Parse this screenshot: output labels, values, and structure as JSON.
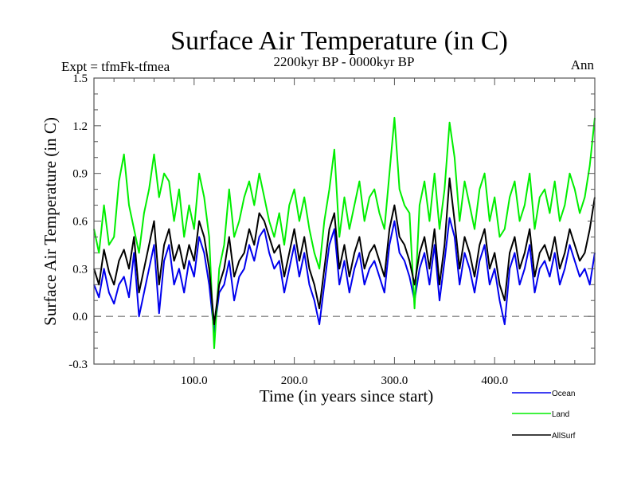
{
  "chart_data": {
    "type": "line",
    "title": "Surface Air Temperature (in C)",
    "subtitle": "2200kyr BP - 0000kyr BP",
    "left_annotation": "Expt = tfmFk-tfmea",
    "right_annotation": "Ann",
    "xlabel": "Time (in years since start)",
    "ylabel": "Surface Air Temperature (in C)",
    "xlim": [
      0,
      500
    ],
    "ylim": [
      -0.3,
      1.5
    ],
    "x_ticks": [
      100,
      200,
      300,
      400
    ],
    "x_tick_labels": [
      "100.0",
      "200.0",
      "300.0",
      "400.0"
    ],
    "x_minor_step": 20,
    "y_ticks": [
      -0.3,
      0.0,
      0.3,
      0.6,
      0.9,
      1.2,
      1.5
    ],
    "y_tick_labels": [
      "-0.3",
      "0.0",
      "0.3",
      "0.6",
      "0.9",
      "1.2",
      "1.5"
    ],
    "y_minor_step": 0.1,
    "reference_line": {
      "y": 0.0,
      "style": "dashed"
    },
    "grid": false,
    "legend_position": "bottom-right",
    "x": [
      0,
      5,
      10,
      15,
      20,
      25,
      30,
      35,
      40,
      45,
      50,
      55,
      60,
      65,
      70,
      75,
      80,
      85,
      90,
      95,
      100,
      105,
      110,
      115,
      120,
      125,
      130,
      135,
      140,
      145,
      150,
      155,
      160,
      165,
      170,
      175,
      180,
      185,
      190,
      195,
      200,
      205,
      210,
      215,
      220,
      225,
      230,
      235,
      240,
      245,
      250,
      255,
      260,
      265,
      270,
      275,
      280,
      285,
      290,
      295,
      300,
      305,
      310,
      315,
      320,
      325,
      330,
      335,
      340,
      345,
      350,
      355,
      360,
      365,
      370,
      375,
      380,
      385,
      390,
      395,
      400,
      405,
      410,
      415,
      420,
      425,
      430,
      435,
      440,
      445,
      450,
      455,
      460,
      465,
      470,
      475,
      480,
      485,
      490,
      495,
      500
    ],
    "series": [
      {
        "name": "Ocean",
        "color": "#0000ee",
        "values": [
          0.2,
          0.12,
          0.3,
          0.15,
          0.08,
          0.2,
          0.25,
          0.12,
          0.4,
          0.0,
          0.15,
          0.3,
          0.45,
          0.02,
          0.35,
          0.45,
          0.2,
          0.3,
          0.15,
          0.35,
          0.25,
          0.5,
          0.4,
          0.2,
          -0.1,
          0.15,
          0.2,
          0.35,
          0.1,
          0.25,
          0.3,
          0.45,
          0.35,
          0.5,
          0.55,
          0.4,
          0.3,
          0.35,
          0.15,
          0.3,
          0.45,
          0.25,
          0.4,
          0.2,
          0.1,
          -0.05,
          0.2,
          0.45,
          0.55,
          0.2,
          0.35,
          0.15,
          0.3,
          0.4,
          0.2,
          0.3,
          0.35,
          0.25,
          0.15,
          0.45,
          0.6,
          0.4,
          0.35,
          0.25,
          0.1,
          0.3,
          0.4,
          0.2,
          0.45,
          0.1,
          0.35,
          0.62,
          0.5,
          0.2,
          0.4,
          0.3,
          0.15,
          0.35,
          0.45,
          0.2,
          0.3,
          0.1,
          -0.05,
          0.3,
          0.4,
          0.2,
          0.3,
          0.45,
          0.15,
          0.3,
          0.35,
          0.25,
          0.4,
          0.2,
          0.3,
          0.45,
          0.35,
          0.25,
          0.3,
          0.2,
          0.4
        ]
      },
      {
        "name": "Land",
        "color": "#00ee00",
        "values": [
          0.55,
          0.4,
          0.7,
          0.45,
          0.5,
          0.85,
          1.02,
          0.7,
          0.55,
          0.4,
          0.65,
          0.8,
          1.02,
          0.75,
          0.9,
          0.85,
          0.6,
          0.8,
          0.5,
          0.7,
          0.55,
          0.9,
          0.75,
          0.5,
          -0.2,
          0.3,
          0.45,
          0.8,
          0.5,
          0.6,
          0.75,
          0.85,
          0.7,
          0.9,
          0.75,
          0.6,
          0.5,
          0.65,
          0.45,
          0.7,
          0.8,
          0.6,
          0.75,
          0.55,
          0.4,
          0.3,
          0.6,
          0.8,
          1.05,
          0.5,
          0.75,
          0.55,
          0.7,
          0.85,
          0.6,
          0.75,
          0.8,
          0.65,
          0.55,
          0.9,
          1.25,
          0.8,
          0.7,
          0.65,
          0.05,
          0.7,
          0.85,
          0.6,
          0.9,
          0.55,
          0.8,
          1.22,
          1.0,
          0.6,
          0.85,
          0.7,
          0.55,
          0.8,
          0.9,
          0.6,
          0.75,
          0.5,
          0.55,
          0.75,
          0.85,
          0.6,
          0.7,
          0.9,
          0.55,
          0.75,
          0.8,
          0.65,
          0.85,
          0.6,
          0.7,
          0.9,
          0.8,
          0.65,
          0.75,
          0.95,
          1.25
        ]
      },
      {
        "name": "AllSurf",
        "color": "#000000",
        "values": [
          0.3,
          0.2,
          0.42,
          0.28,
          0.2,
          0.35,
          0.42,
          0.3,
          0.5,
          0.15,
          0.3,
          0.45,
          0.6,
          0.2,
          0.45,
          0.55,
          0.35,
          0.45,
          0.3,
          0.45,
          0.35,
          0.6,
          0.5,
          0.3,
          -0.05,
          0.2,
          0.3,
          0.5,
          0.25,
          0.35,
          0.4,
          0.55,
          0.45,
          0.65,
          0.6,
          0.5,
          0.4,
          0.45,
          0.25,
          0.4,
          0.55,
          0.35,
          0.5,
          0.3,
          0.2,
          0.05,
          0.3,
          0.55,
          0.65,
          0.3,
          0.45,
          0.25,
          0.4,
          0.5,
          0.3,
          0.4,
          0.45,
          0.35,
          0.25,
          0.55,
          0.7,
          0.5,
          0.45,
          0.35,
          0.2,
          0.4,
          0.5,
          0.3,
          0.55,
          0.2,
          0.45,
          0.87,
          0.6,
          0.3,
          0.5,
          0.4,
          0.25,
          0.45,
          0.55,
          0.3,
          0.4,
          0.2,
          0.1,
          0.4,
          0.5,
          0.3,
          0.4,
          0.55,
          0.25,
          0.4,
          0.45,
          0.35,
          0.5,
          0.3,
          0.4,
          0.55,
          0.45,
          0.35,
          0.4,
          0.55,
          0.75
        ]
      }
    ]
  }
}
